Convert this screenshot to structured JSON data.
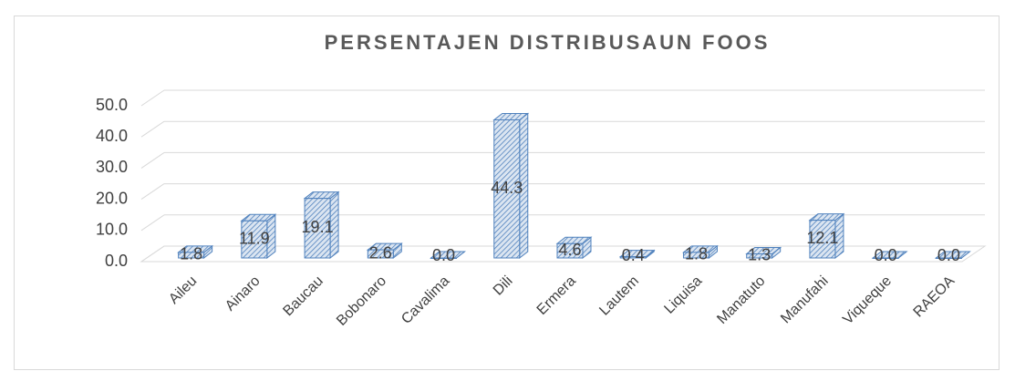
{
  "chart_data": {
    "type": "bar3d",
    "title": "PERSENTAJEN DISTRIBUSAUN FOOS",
    "categories": [
      "Aileu",
      "Ainaro",
      "Baucau",
      "Bobonaro",
      "Cavalima",
      "Dili",
      "Ermera",
      "Lautem",
      "Liquisa",
      "Manatuto",
      "Manufahi",
      "Viqueque",
      "RAEOA"
    ],
    "values": [
      1.8,
      11.9,
      19.1,
      2.6,
      0,
      44.3,
      4.6,
      0.4,
      1.8,
      1.3,
      12.1,
      0,
      0
    ],
    "value_labels": [
      "1.8",
      "11.9",
      "19.1",
      "2.6",
      "0.0",
      "44.3",
      "4.6",
      "0.4",
      "1.8",
      "1.3",
      "12.1",
      "0.0",
      "0.0"
    ],
    "color": "#4f81bd",
    "ylim": [
      0,
      50
    ],
    "yticks": [
      {
        "value": 0,
        "label": "0.0"
      },
      {
        "value": 10,
        "label": "10.0"
      },
      {
        "value": 20,
        "label": "20.0"
      },
      {
        "value": 30,
        "label": "30.0"
      },
      {
        "value": 40,
        "label": "40.0"
      },
      {
        "value": 50,
        "label": "50.0"
      }
    ],
    "grid": true
  }
}
